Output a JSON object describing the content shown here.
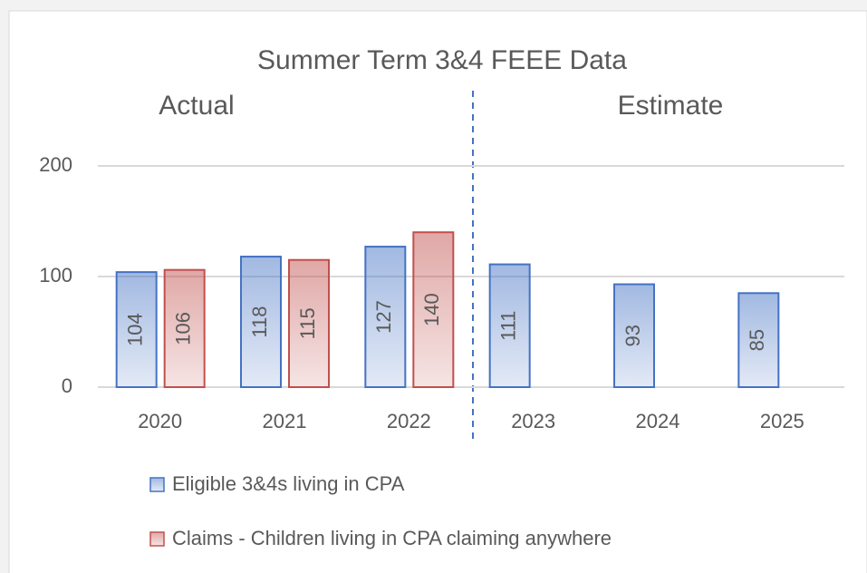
{
  "chart_data": {
    "type": "bar",
    "title": "Summer  Term  3&4  FEEE  Data",
    "annotations": [
      "Actual",
      "Estimate"
    ],
    "categories": [
      "2020",
      "2021",
      "2022",
      "2023",
      "2024",
      "2025"
    ],
    "series": [
      {
        "name": "Eligible 3&4s living in CPA",
        "color": "#4472c4",
        "values": [
          104,
          118,
          127,
          111,
          93,
          85
        ]
      },
      {
        "name": "Claims - Children living in CPA claiming anywhere",
        "color": "#c0504d",
        "values": [
          106,
          115,
          140,
          null,
          null,
          null
        ]
      }
    ],
    "ylim": [
      0,
      200
    ],
    "yticks": [
      0,
      100,
      200
    ],
    "grid": true,
    "legend": "bottom"
  }
}
